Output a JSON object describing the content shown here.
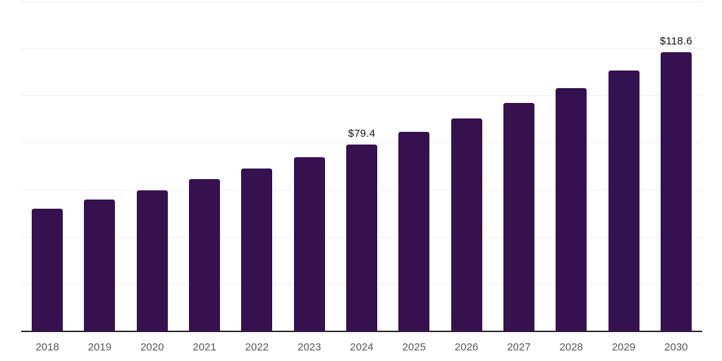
{
  "chart_data": {
    "type": "bar",
    "title": "",
    "xlabel": "",
    "ylabel": "",
    "categories": [
      "2018",
      "2019",
      "2020",
      "2021",
      "2022",
      "2023",
      "2024",
      "2025",
      "2026",
      "2027",
      "2028",
      "2029",
      "2030"
    ],
    "values": [
      52.2,
      56.1,
      60.0,
      64.7,
      69.2,
      74.2,
      79.4,
      84.7,
      90.6,
      97.0,
      103.5,
      110.9,
      118.6
    ],
    "data_labels": [
      "",
      "",
      "",
      "",
      "",
      "",
      "$79.4",
      "",
      "",
      "",
      "",
      "",
      "$118.6"
    ],
    "ylim": [
      0,
      140
    ],
    "gridline_step": 20,
    "grid": true,
    "legend": false,
    "colors": {
      "bar": "#35114F",
      "axis_line": "#262626",
      "gridline": "#F0F0F0",
      "tick_label": "#58585A",
      "value_label": "#121212",
      "background": "#FFFFFF"
    }
  }
}
